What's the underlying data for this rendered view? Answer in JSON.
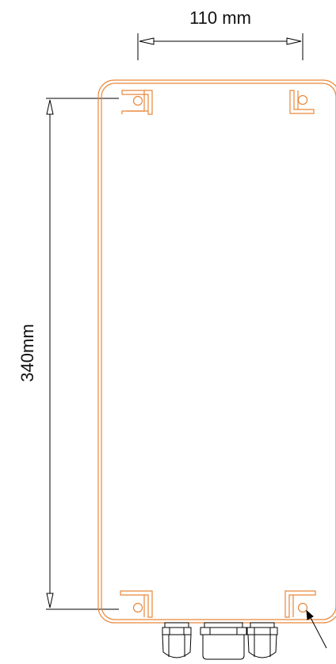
{
  "dimensions": {
    "width_label": "110 mm",
    "height_label": "340mm"
  },
  "colors": {
    "enclosure_outline": "#E8873A",
    "dimension_lines": "#000000",
    "glands": "#000000"
  },
  "parts": {
    "mounting_brackets": 4,
    "cable_glands": 3
  }
}
